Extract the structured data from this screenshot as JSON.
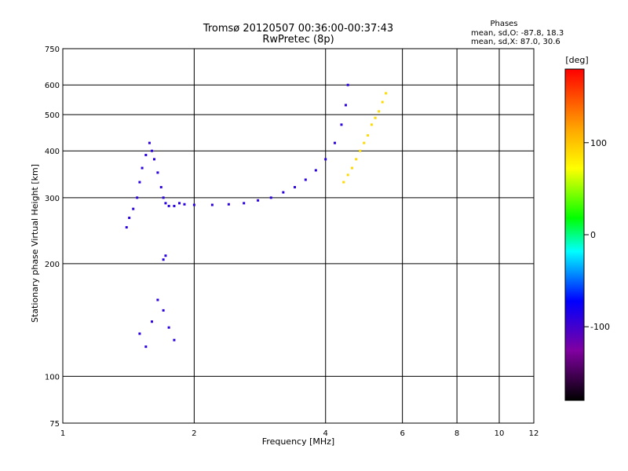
{
  "chart_data": {
    "type": "scatter",
    "title": "Tromsø 20120507 00:36:00-00:37:43",
    "subtitle": "RwPretec (8p)",
    "xlabel": "Frequency [MHz]",
    "ylabel": "Stationary phase Virtual Height [km]",
    "x_scale": "log",
    "y_scale": "log",
    "xlim": [
      1,
      12
    ],
    "ylim": [
      75,
      750
    ],
    "x_ticks": [
      "1",
      "2",
      "4",
      "6",
      "8",
      "10",
      "12"
    ],
    "y_ticks": [
      "75",
      "100",
      "200",
      "300",
      "400",
      "500",
      "600",
      "750"
    ],
    "grid": true,
    "legend": {
      "title": "Phases",
      "lines": [
        "mean, sd,O: -87.8, 18.3",
        "mean, sd,X:  87.0, 30.6"
      ]
    },
    "colorbar": {
      "label": "[deg]",
      "ticks": [
        "100",
        "0",
        "-100"
      ],
      "range": [
        -180,
        180
      ]
    },
    "series": [
      {
        "name": "O",
        "color_deg": -90,
        "points": [
          [
            1.45,
            280
          ],
          [
            1.48,
            300
          ],
          [
            1.5,
            330
          ],
          [
            1.52,
            360
          ],
          [
            1.55,
            390
          ],
          [
            1.58,
            420
          ],
          [
            1.6,
            400
          ],
          [
            1.62,
            380
          ],
          [
            1.65,
            350
          ],
          [
            1.68,
            320
          ],
          [
            1.7,
            300
          ],
          [
            1.72,
            290
          ],
          [
            1.75,
            285
          ],
          [
            1.8,
            285
          ],
          [
            1.85,
            290
          ],
          [
            1.9,
            288
          ],
          [
            2.0,
            287
          ],
          [
            2.2,
            287
          ],
          [
            2.4,
            288
          ],
          [
            2.6,
            290
          ],
          [
            2.8,
            295
          ],
          [
            3.0,
            300
          ],
          [
            3.2,
            310
          ],
          [
            3.4,
            320
          ],
          [
            3.6,
            335
          ],
          [
            3.8,
            355
          ],
          [
            4.0,
            380
          ],
          [
            4.2,
            420
          ],
          [
            4.35,
            470
          ],
          [
            4.45,
            530
          ],
          [
            4.5,
            600
          ],
          [
            1.4,
            250
          ],
          [
            1.42,
            265
          ],
          [
            1.5,
            130
          ],
          [
            1.55,
            120
          ],
          [
            1.6,
            140
          ],
          [
            1.65,
            160
          ],
          [
            1.7,
            150
          ],
          [
            1.75,
            135
          ],
          [
            1.8,
            125
          ],
          [
            1.7,
            205
          ],
          [
            1.72,
            210
          ]
        ]
      },
      {
        "name": "X",
        "color_deg": 90,
        "points": [
          [
            4.4,
            330
          ],
          [
            4.5,
            345
          ],
          [
            4.6,
            360
          ],
          [
            4.7,
            380
          ],
          [
            4.8,
            400
          ],
          [
            4.9,
            420
          ],
          [
            5.0,
            440
          ],
          [
            5.1,
            470
          ],
          [
            5.2,
            490
          ],
          [
            5.3,
            510
          ],
          [
            5.4,
            540
          ],
          [
            5.5,
            570
          ]
        ]
      }
    ]
  }
}
